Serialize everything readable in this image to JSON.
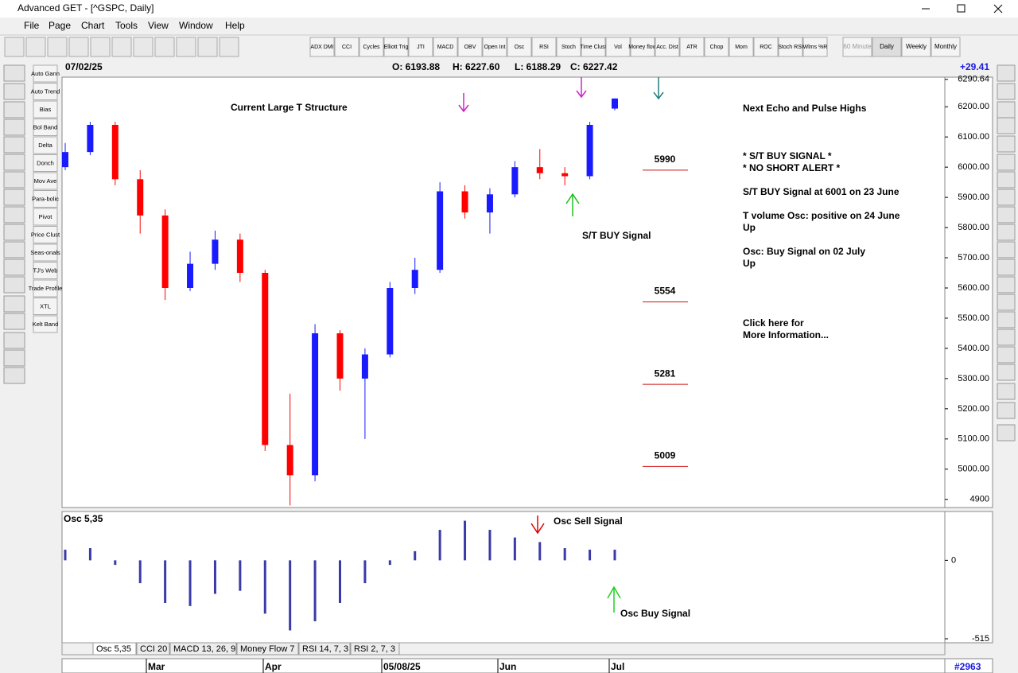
{
  "window": {
    "title": "Advanced GET - [^GSPC, Daily]"
  },
  "menu": [
    "File",
    "Page",
    "Chart",
    "Tools",
    "View",
    "Window",
    "Help"
  ],
  "toolbar": [
    "ADX DMI",
    "CCI",
    "Cycles",
    "Elliott Trig",
    "JTI",
    "MACD",
    "OBV",
    "Open Int",
    "Osc",
    "RSI",
    "Stoch",
    "Time Clust",
    "Vol",
    "Money flow",
    "Acc. Dist",
    "ATR",
    "Chop",
    "Mom",
    "ROC",
    "Stoch RSI",
    "Wlms %R"
  ],
  "periods": [
    "60 Minute",
    "Daily",
    "Weekly",
    "Monthly"
  ],
  "studies": [
    "Auto Gann",
    "Auto Trend",
    "Bias",
    "Bol Band",
    "Delta",
    "Donch",
    "Mov Ave",
    "Para-bolic",
    "Pivot",
    "Price Clust",
    "Seas-onals",
    "TJ's Web",
    "Trade Profile",
    "XTL",
    "Kelt Band"
  ],
  "header": {
    "date": "07/02/25",
    "open": "O: 6193.88",
    "high": "H: 6227.60",
    "low": "L: 6188.29",
    "close": "C: 6227.42",
    "change": "+29.41"
  },
  "chart_data": [
    {
      "type": "candlestick",
      "title": "Current Large T Structure",
      "annotation": "S/T BUY Signal",
      "open": [
        6000,
        6050,
        6140,
        5960,
        5840,
        5600,
        5680,
        5760,
        5650,
        5080,
        4980,
        5450,
        5300,
        5380,
        5600,
        5660,
        5920,
        5850,
        5910,
        6000,
        5980,
        5970,
        6193.88
      ],
      "high": [
        6080,
        6150,
        6150,
        5990,
        5860,
        5720,
        5790,
        5780,
        5660,
        5250,
        5480,
        5460,
        5400,
        5620,
        5700,
        5950,
        5940,
        5930,
        6020,
        6060,
        6000,
        6150,
        6227.6
      ],
      "low": [
        5990,
        6040,
        5940,
        5780,
        5560,
        5590,
        5660,
        5620,
        5060,
        4880,
        4960,
        5260,
        5100,
        5370,
        5580,
        5650,
        5830,
        5780,
        5900,
        5960,
        5940,
        5960,
        6188.29
      ],
      "close": [
        6050,
        6140,
        5960,
        5840,
        5600,
        5680,
        5760,
        5650,
        5080,
        4980,
        5450,
        5300,
        5380,
        5600,
        5660,
        5920,
        5850,
        5910,
        6000,
        5980,
        5970,
        6140,
        6227.42
      ],
      "up_color": "#1a1aff",
      "down_color": "#ff0000",
      "levels": [
        5990,
        5554,
        5281,
        5009
      ],
      "level_color": "#d01010",
      "ylim": [
        4873,
        6298
      ],
      "yticks": [
        {
          "value": 4900,
          "label": "4900"
        },
        {
          "value": 5000,
          "label": "5000.00"
        },
        {
          "value": 5100,
          "label": "5100.00"
        },
        {
          "value": 5200,
          "label": "5200.00"
        },
        {
          "value": 5300,
          "label": "5300.00"
        },
        {
          "value": 5400,
          "label": "5400.00"
        },
        {
          "value": 5500,
          "label": "5500.00"
        },
        {
          "value": 5600,
          "label": "5600.00"
        },
        {
          "value": 5700,
          "label": "5700.00"
        },
        {
          "value": 5800,
          "label": "5800.00"
        },
        {
          "value": 5900,
          "label": "5900.00"
        },
        {
          "value": 6000,
          "label": "6000.00"
        },
        {
          "value": 6100,
          "label": "6100.00"
        },
        {
          "value": 6200,
          "label": "6200.00"
        },
        {
          "value": 6290.64,
          "label": "6290.64"
        }
      ]
    },
    {
      "type": "bar",
      "title": "Osc 5,35",
      "sell_label": "Osc Sell Signal",
      "buy_label": "Osc Buy Signal",
      "values": [
        70,
        80,
        -30,
        -150,
        -280,
        -300,
        -220,
        -200,
        -350,
        -460,
        -400,
        -280,
        -150,
        -30,
        60,
        200,
        260,
        200,
        150,
        120,
        80,
        70,
        70
      ],
      "color": "#3a3aa8",
      "ylim": [
        -515,
        310
      ],
      "yticks": [
        0,
        -515
      ]
    }
  ],
  "notes": [
    "Next Echo and Pulse Highs",
    "* S/T BUY SIGNAL *",
    "* NO SHORT ALERT *",
    "S/T BUY Signal at 6001 on 23 June",
    "T volume Osc: positive on 24 June",
    "Up",
    "Osc: Buy Signal on 02 July",
    "Up",
    "Click here for",
    "More Information..."
  ],
  "tabs": [
    "Osc 5,35",
    "CCI 20",
    "MACD 13, 26, 9",
    "Money Flow 7",
    "RSI 14, 7, 3",
    "RSI 2, 7, 3"
  ],
  "time_axis": [
    "Mar",
    "Apr",
    "05/08/25",
    "Jun",
    "Jul"
  ],
  "status": "#2963"
}
